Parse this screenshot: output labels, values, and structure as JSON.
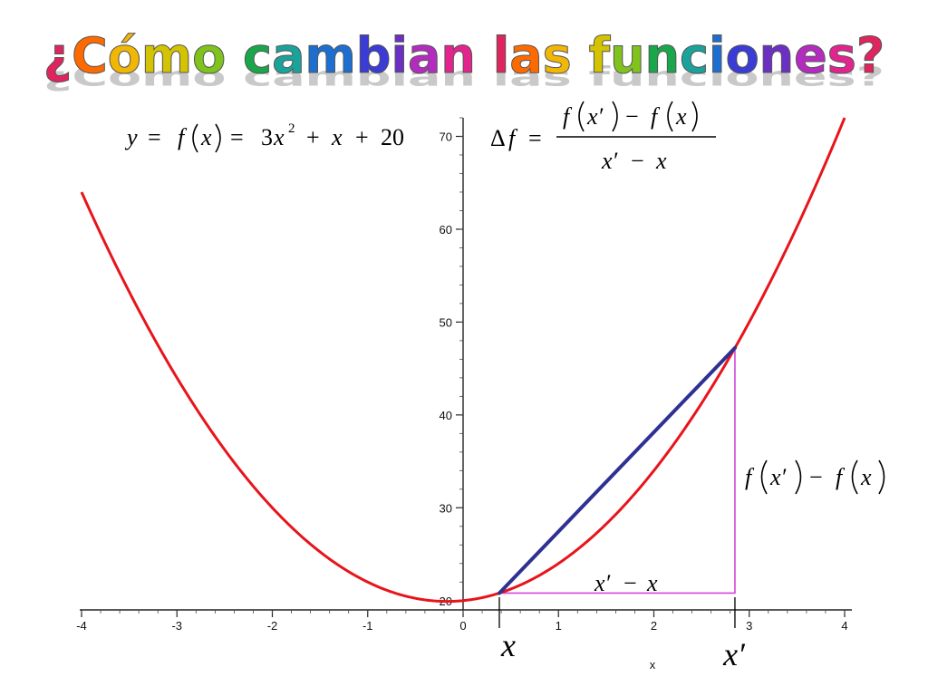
{
  "title": "¿Cómo cambian las funciones?",
  "title_colors": [
    "#e0245e",
    "#ff6a00",
    "#f2b705",
    "#d4c300",
    "#7fc31c",
    "#1aa64a",
    "#1aa39a",
    "#1c6fd1",
    "#3b3bd6",
    "#6b2fc4",
    "#b42bbf",
    "#e3238e"
  ],
  "formula_function": {
    "lhs": "y",
    "eq1": "=",
    "f": "f",
    "arg": "x",
    "eq2": "=",
    "coef": "3",
    "var": "x",
    "exp": "2",
    "plus1": "+",
    "term2": "x",
    "plus2": "+",
    "const": "20"
  },
  "formula_delta": {
    "delta": "Δ",
    "f": "f",
    "eq": "=",
    "num_f1": "f",
    "num_arg1": "x′",
    "num_minus": "−",
    "num_f2": "f",
    "num_arg2": "x",
    "den_a": "x′",
    "den_minus": "−",
    "den_b": "x"
  },
  "rise_label": {
    "f1": "f",
    "arg1": "x′",
    "minus": "−",
    "f2": "f",
    "arg2": "x"
  },
  "run_label": {
    "a": "x′",
    "minus": "−",
    "b": "x"
  },
  "point_labels": {
    "x": "x",
    "x_prime": "x′"
  },
  "chart_data": {
    "type": "line",
    "function": "3x^2 + x + 20",
    "xlabel": "x",
    "xlim": [
      -4,
      4
    ],
    "ylim": [
      19,
      72
    ],
    "x_ticks": [
      -4,
      -3,
      -2,
      -1,
      0,
      1,
      2,
      3,
      4
    ],
    "y_ticks": [
      20,
      30,
      40,
      50,
      60,
      70
    ],
    "series": [
      {
        "kind": "curve",
        "color": "#e8141b",
        "x": [
          -4,
          -3.5,
          -3,
          -2.5,
          -2,
          -1.5,
          -1,
          -0.5,
          0,
          0.5,
          1,
          1.5,
          2,
          2.5,
          3,
          3.5,
          4
        ],
        "y": [
          64,
          53.25,
          44,
          36.25,
          30,
          25.25,
          22,
          20.25,
          20,
          21.25,
          24,
          28.25,
          34,
          41.25,
          50,
          60.25,
          72
        ]
      }
    ],
    "secant": {
      "color": "#2e3192",
      "x1": 0.38,
      "y1": 20.81,
      "x2": 2.85,
      "y2": 47.22
    },
    "triangle": {
      "color": "#d147d6",
      "x1": 0.38,
      "y1": 20.81,
      "x2": 2.85,
      "y2": 47.22
    },
    "markers": {
      "x": 0.38,
      "x_prime": 2.85
    },
    "grid": false
  }
}
